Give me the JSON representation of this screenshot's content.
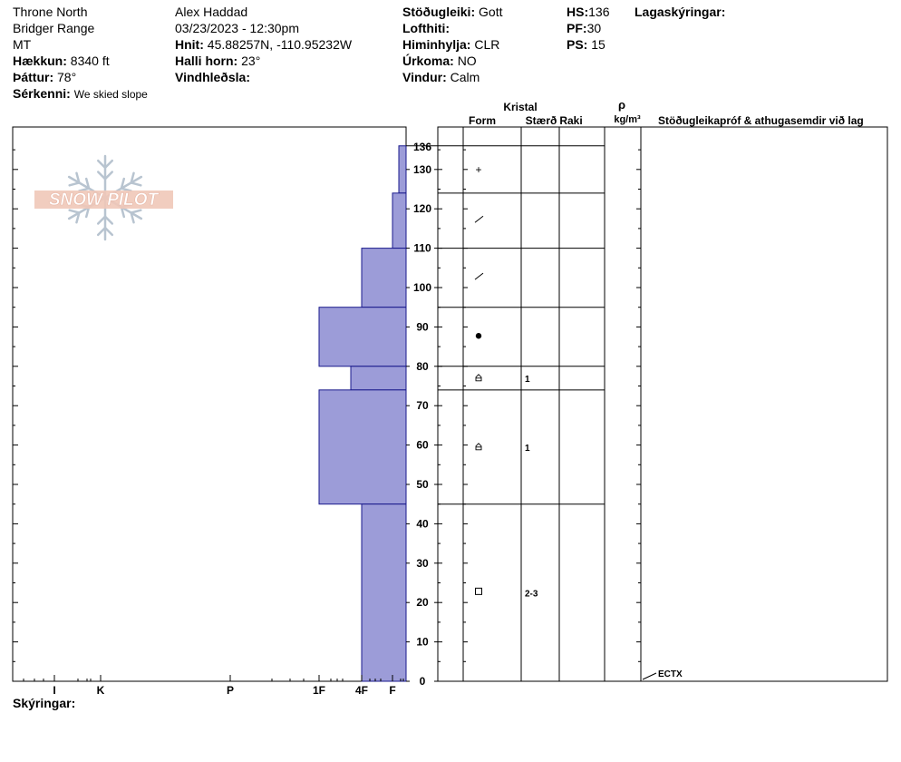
{
  "header": {
    "location": "Throne North",
    "range": "Bridger Range",
    "state": "MT",
    "elevation_label": "Hækkun:",
    "elevation_value": "8340 ft",
    "aspect_label": "Þáttur:",
    "aspect_value": "78°",
    "notes_label": "Sérkenni:",
    "notes_value": "We skied slope",
    "observer": "Alex Haddad",
    "datetime": "03/23/2023 - 12:30pm",
    "coords_label": "Hnit:",
    "coords_value": "45.88257N, -110.95232W",
    "slope_label": "Halli horn:",
    "slope_value": "23°",
    "wind_loading_label": "Vindhleðsla:",
    "wind_loading_value": "",
    "stability_label": "Stöðugleiki:",
    "stability_value": "Gott",
    "air_temp_label": "Lofthiti:",
    "air_temp_value": "",
    "sky_label": "Himinhylja:",
    "sky_value": "CLR",
    "precip_label": "Úrkoma:",
    "precip_value": "NO",
    "wind_label": "Vindur:",
    "wind_value": "Calm",
    "hs_label": "HS:",
    "hs_value": "136",
    "pf_label": "PF:",
    "pf_value": "30",
    "ps_label": "PS:",
    "ps_value": "15",
    "layer_notes_label": "Lagaskýringar:"
  },
  "columns": {
    "crystal": "Kristal",
    "form": "Form",
    "size": "Stærð",
    "moisture": "Raki",
    "rho": "ρ",
    "density_unit": "kg/m³",
    "tests": "Stöðugleikapróf & athugasemdir við lag"
  },
  "footer": {
    "comments_label": "Skýringar:"
  },
  "logo_text": "SNOW PILOT",
  "colors": {
    "layer_fill": "#9c9cd8",
    "layer_stroke": "#1a1a8c",
    "logo": "#f0c8b8"
  },
  "chart_data": {
    "type": "snow-profile",
    "y_axis": {
      "min": 0,
      "max": 136,
      "ticks": [
        0,
        10,
        20,
        30,
        40,
        50,
        60,
        70,
        80,
        90,
        100,
        110,
        120,
        130
      ],
      "top_label": "136"
    },
    "hardness_ticks": [
      "I",
      "K",
      "P",
      "1F",
      "4F",
      "F"
    ],
    "layers": [
      {
        "top": 136,
        "bottom": 124,
        "hardness": "F-"
      },
      {
        "top": 124,
        "bottom": 110,
        "hardness": "F"
      },
      {
        "top": 110,
        "bottom": 95,
        "hardness": "4F"
      },
      {
        "top": 95,
        "bottom": 80,
        "hardness": "1F"
      },
      {
        "top": 80,
        "bottom": 74,
        "hardness": "4F+"
      },
      {
        "top": 74,
        "bottom": 45,
        "hardness": "1F"
      },
      {
        "top": 45,
        "bottom": 0,
        "hardness": "4F"
      }
    ],
    "grain_rows": [
      {
        "top": 136,
        "bottom": 124,
        "form_symbol": "+",
        "size": ""
      },
      {
        "top": 124,
        "bottom": 110,
        "form_symbol": "/",
        "size": ""
      },
      {
        "top": 110,
        "bottom": 95,
        "form_symbol": "/",
        "size": ""
      },
      {
        "top": 95,
        "bottom": 80,
        "form_symbol": "●",
        "size": ""
      },
      {
        "top": 80,
        "bottom": 74,
        "form_symbol": "⌂",
        "size": "1"
      },
      {
        "top": 74,
        "bottom": 45,
        "form_symbol": "⌂",
        "size": "1"
      },
      {
        "top": 45,
        "bottom": 0,
        "form_symbol": "□",
        "size": "2-3"
      }
    ],
    "tests": [
      {
        "depth": 0,
        "label": "ECTX"
      }
    ]
  }
}
